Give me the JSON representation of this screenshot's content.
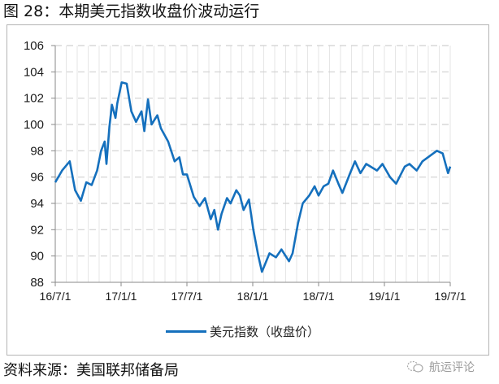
{
  "figure": {
    "title": "图 28：本期美元指数收盘价波动运行",
    "source": "资料来源：美国联邦储备局",
    "watermark": "航运评论",
    "watermark_icon": "wechat-icon"
  },
  "legend": {
    "label": "美元指数（收盘价）",
    "color": "#1570bd"
  },
  "chart_data": {
    "type": "line",
    "title": "本期美元指数收盘价波动运行",
    "xlabel": "",
    "ylabel": "",
    "ylim": [
      88,
      106
    ],
    "yticks": [
      "88",
      "90",
      "92",
      "94",
      "96",
      "98",
      "100",
      "102",
      "104",
      "106"
    ],
    "xticks": [
      "16/7/1",
      "17/1/1",
      "17/7/1",
      "18/1/1",
      "18/7/1",
      "19/1/1",
      "19/7/1"
    ],
    "grid": {
      "horizontal": "dashed",
      "vertical": "light"
    },
    "legend_position": "bottom",
    "series": [
      {
        "name": "美元指数（收盘价）",
        "color": "#1570bd",
        "x": [
          "2016-07-01",
          "2016-07-20",
          "2016-08-10",
          "2016-08-25",
          "2016-09-10",
          "2016-09-25",
          "2016-10-10",
          "2016-10-25",
          "2016-11-05",
          "2016-11-15",
          "2016-11-20",
          "2016-11-28",
          "2016-12-05",
          "2016-12-15",
          "2016-12-20",
          "2017-01-01",
          "2017-01-15",
          "2017-01-28",
          "2017-02-10",
          "2017-02-25",
          "2017-03-05",
          "2017-03-15",
          "2017-03-25",
          "2017-04-10",
          "2017-04-20",
          "2017-05-10",
          "2017-05-28",
          "2017-06-10",
          "2017-06-20",
          "2017-07-01",
          "2017-07-20",
          "2017-08-05",
          "2017-08-20",
          "2017-09-05",
          "2017-09-15",
          "2017-09-25",
          "2017-10-05",
          "2017-10-20",
          "2017-10-30",
          "2017-11-15",
          "2017-11-25",
          "2017-12-05",
          "2017-12-20",
          "2018-01-01",
          "2018-01-15",
          "2018-01-25",
          "2018-02-15",
          "2018-03-05",
          "2018-03-20",
          "2018-04-10",
          "2018-04-20",
          "2018-05-05",
          "2018-05-18",
          "2018-06-05",
          "2018-06-20",
          "2018-07-01",
          "2018-07-15",
          "2018-07-28",
          "2018-08-10",
          "2018-08-25",
          "2018-09-05",
          "2018-09-25",
          "2018-10-10",
          "2018-10-25",
          "2018-11-10",
          "2018-12-10",
          "2018-12-25",
          "2019-01-15",
          "2019-02-01",
          "2019-02-25",
          "2019-03-10",
          "2019-03-30",
          "2019-04-15",
          "2019-05-05",
          "2019-05-25",
          "2019-06-10",
          "2019-06-25",
          "2019-07-01"
        ],
        "values": [
          95.6,
          96.5,
          97.2,
          95.0,
          94.2,
          95.6,
          95.4,
          96.5,
          98.0,
          98.7,
          97.0,
          99.8,
          101.5,
          100.5,
          101.6,
          103.2,
          103.1,
          101.0,
          100.2,
          101.0,
          99.5,
          101.9,
          100.0,
          100.7,
          99.7,
          98.7,
          97.2,
          97.5,
          96.2,
          96.2,
          94.5,
          93.8,
          94.4,
          92.8,
          93.5,
          92.0,
          93.2,
          94.4,
          94.0,
          95.0,
          94.6,
          93.5,
          94.3,
          92.0,
          90.0,
          88.8,
          90.2,
          89.9,
          90.5,
          89.6,
          90.2,
          92.5,
          94.0,
          94.6,
          95.3,
          94.6,
          95.3,
          95.5,
          96.5,
          95.5,
          94.8,
          96.2,
          97.2,
          96.3,
          97.0,
          96.5,
          97.0,
          96.0,
          95.5,
          96.8,
          97.0,
          96.5,
          97.2,
          97.6,
          98.0,
          97.8,
          96.3,
          96.8
        ]
      }
    ]
  }
}
